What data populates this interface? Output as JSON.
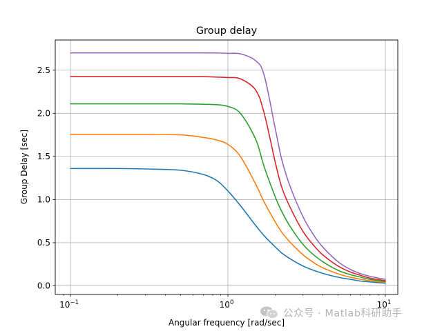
{
  "chart_data": {
    "type": "line",
    "title": "Group delay",
    "xlabel": "Angular frequency [rad/sec]",
    "ylabel": "Group Delay [sec]",
    "xscale": "log",
    "xlim": [
      0.08,
      12
    ],
    "ylim": [
      -0.1,
      2.85
    ],
    "grid": true,
    "legend": "none",
    "x_ticks": [
      {
        "value": 0.1,
        "base": "10",
        "exp": "−1"
      },
      {
        "value": 1,
        "base": "10",
        "exp": "0"
      },
      {
        "value": 10,
        "base": "10",
        "exp": "1"
      }
    ],
    "y_ticks": [
      {
        "value": 0.0,
        "label": "0.0"
      },
      {
        "value": 0.5,
        "label": "0.5"
      },
      {
        "value": 1.0,
        "label": "1.0"
      },
      {
        "value": 1.5,
        "label": "1.5"
      },
      {
        "value": 2.0,
        "label": "2.0"
      },
      {
        "value": 2.5,
        "label": "2.5"
      }
    ],
    "x": [
      0.1,
      0.2,
      0.3,
      0.5,
      0.7,
      0.85,
      1.0,
      1.2,
      1.5,
      1.7,
      2.0,
      2.2,
      2.5,
      3.0,
      3.5,
      4.0,
      5.0,
      6.0,
      7.0,
      8.0,
      10.0
    ],
    "series": [
      {
        "color": "#1f77b4",
        "values": [
          1.36,
          1.36,
          1.355,
          1.34,
          1.29,
          1.22,
          1.1,
          0.93,
          0.7,
          0.58,
          0.45,
          0.38,
          0.31,
          0.23,
          0.18,
          0.145,
          0.1,
          0.075,
          0.055,
          0.045,
          0.03
        ]
      },
      {
        "color": "#ff7f0e",
        "values": [
          1.755,
          1.755,
          1.755,
          1.75,
          1.72,
          1.69,
          1.64,
          1.5,
          1.18,
          0.97,
          0.74,
          0.62,
          0.5,
          0.36,
          0.27,
          0.21,
          0.14,
          0.1,
          0.075,
          0.06,
          0.04
        ]
      },
      {
        "color": "#2ca02c",
        "values": [
          2.11,
          2.11,
          2.11,
          2.11,
          2.105,
          2.1,
          2.08,
          2.0,
          1.7,
          1.38,
          1.03,
          0.86,
          0.68,
          0.48,
          0.36,
          0.28,
          0.18,
          0.13,
          0.1,
          0.075,
          0.05
        ]
      },
      {
        "color": "#d62728",
        "values": [
          2.425,
          2.425,
          2.425,
          2.425,
          2.425,
          2.42,
          2.415,
          2.4,
          2.27,
          2.0,
          1.43,
          1.14,
          0.9,
          0.63,
          0.47,
          0.36,
          0.23,
          0.16,
          0.12,
          0.09,
          0.06
        ]
      },
      {
        "color": "#9467bd",
        "values": [
          2.7,
          2.7,
          2.7,
          2.7,
          2.7,
          2.7,
          2.695,
          2.69,
          2.61,
          2.44,
          1.82,
          1.46,
          1.14,
          0.8,
          0.59,
          0.45,
          0.28,
          0.19,
          0.14,
          0.11,
          0.075
        ]
      }
    ]
  },
  "watermark": {
    "icon": "wechat-icon",
    "text": "公众号 · Matlab科研助手",
    "color": "#b4b4b4"
  }
}
